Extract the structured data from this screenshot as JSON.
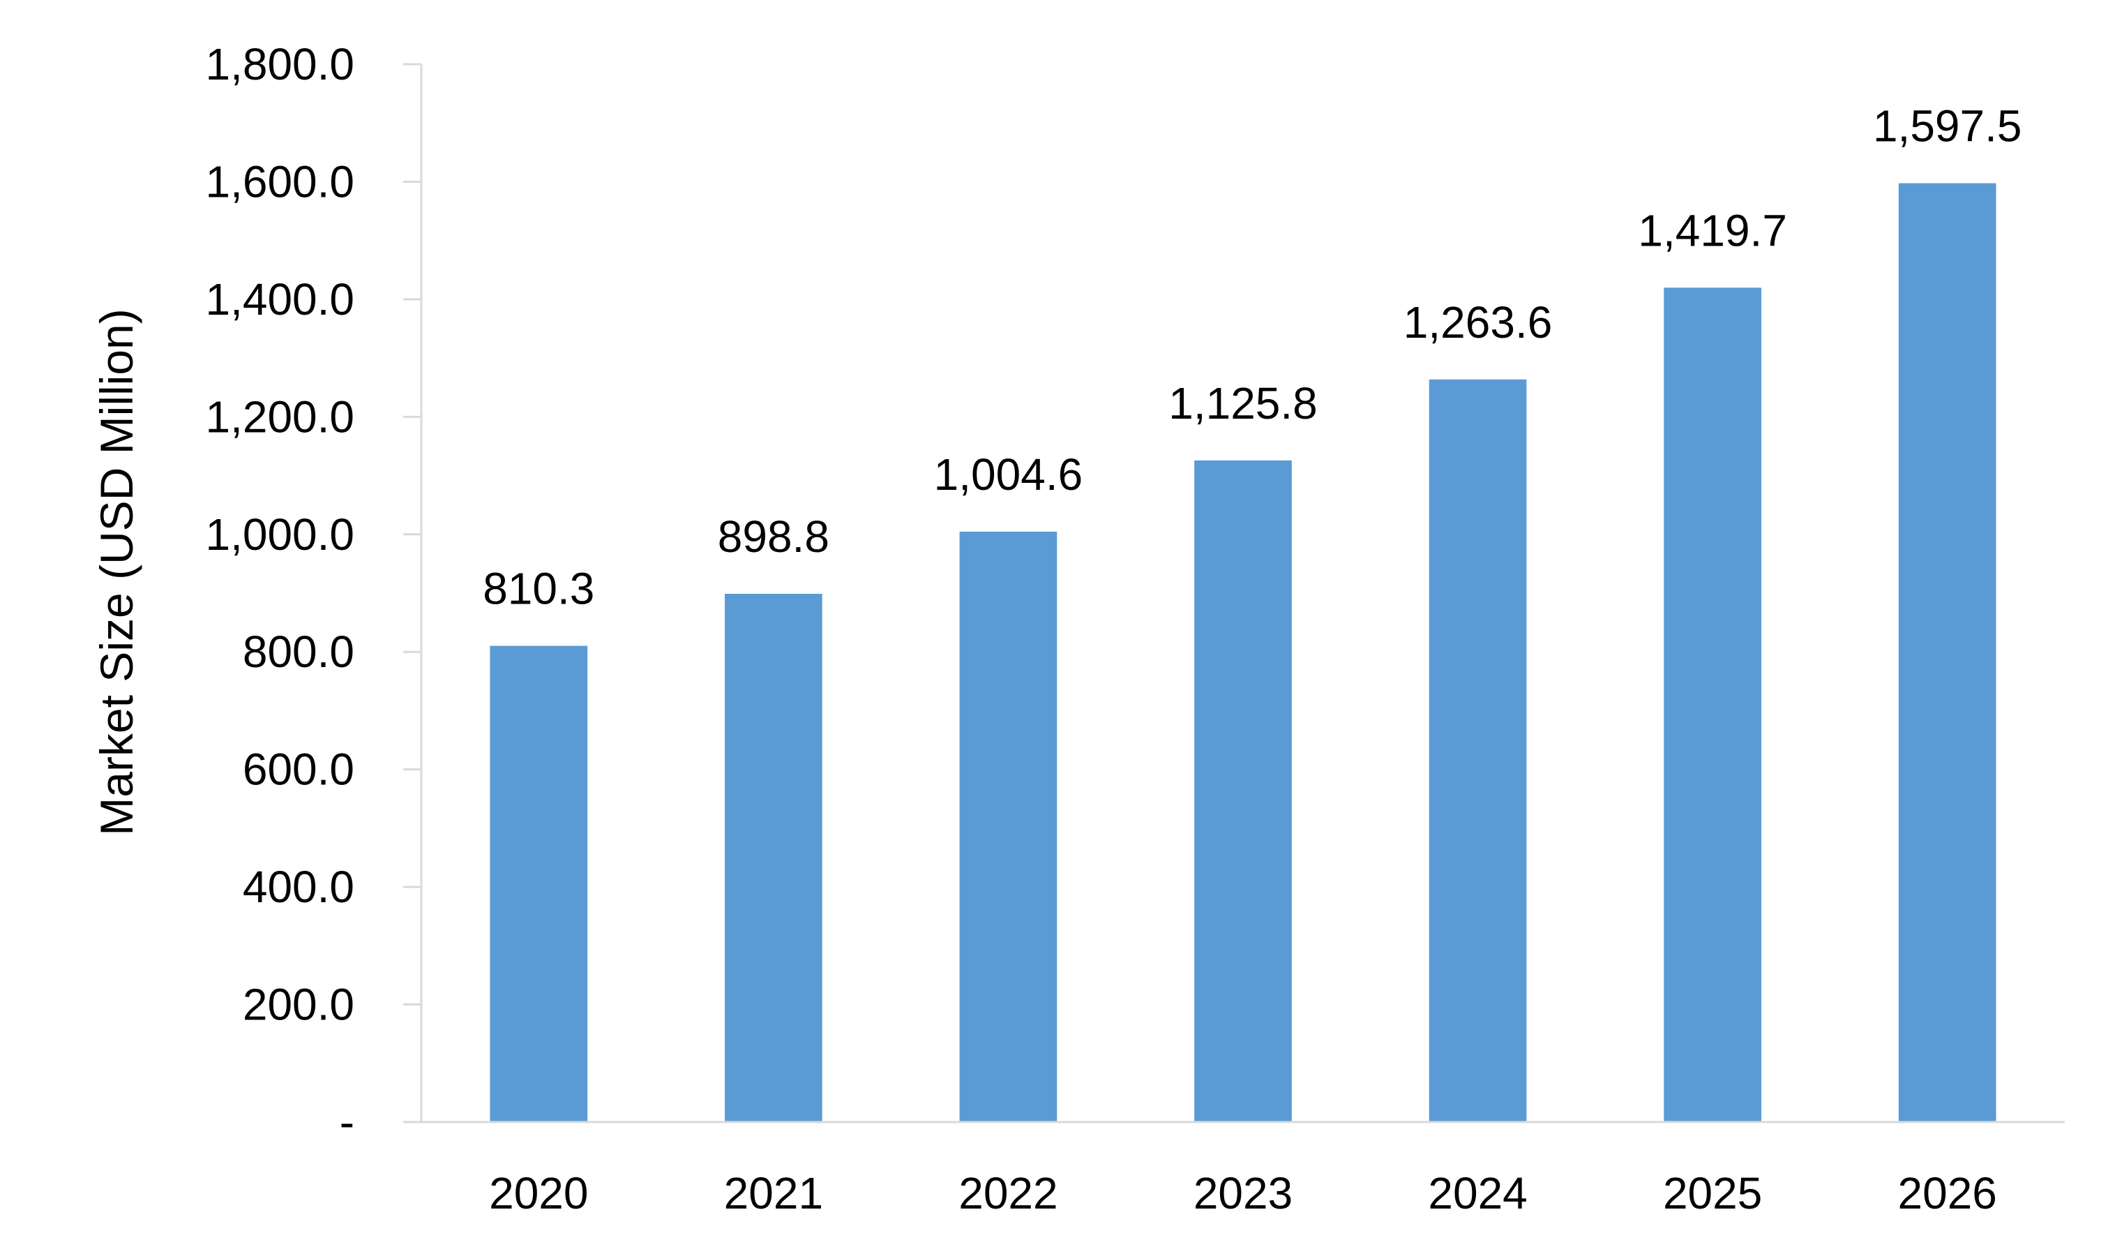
{
  "chart_data": {
    "type": "bar",
    "categories": [
      "2020",
      "2021",
      "2022",
      "2023",
      "2024",
      "2025",
      "2026"
    ],
    "values": [
      810.3,
      898.8,
      1004.6,
      1125.8,
      1263.6,
      1419.7,
      1597.5
    ],
    "value_labels": [
      "810.3",
      "898.8",
      "1,004.6",
      "1,125.8",
      "1,263.6",
      "1,419.7",
      "1,597.5"
    ],
    "ylabel": "Market Size (USD Million)",
    "xlabel": "",
    "ylim": [
      0,
      1800
    ],
    "yticks": [
      0,
      200,
      400,
      600,
      800,
      1000,
      1200,
      1400,
      1600,
      1800
    ],
    "ytick_labels": [
      "-",
      "200.0",
      "400.0",
      "600.0",
      "800.0",
      "1,000.0",
      "1,200.0",
      "1,400.0",
      "1,600.0",
      "1,800.0"
    ],
    "bar_color": "#5b9bd5",
    "grid": false,
    "legend": "none"
  }
}
